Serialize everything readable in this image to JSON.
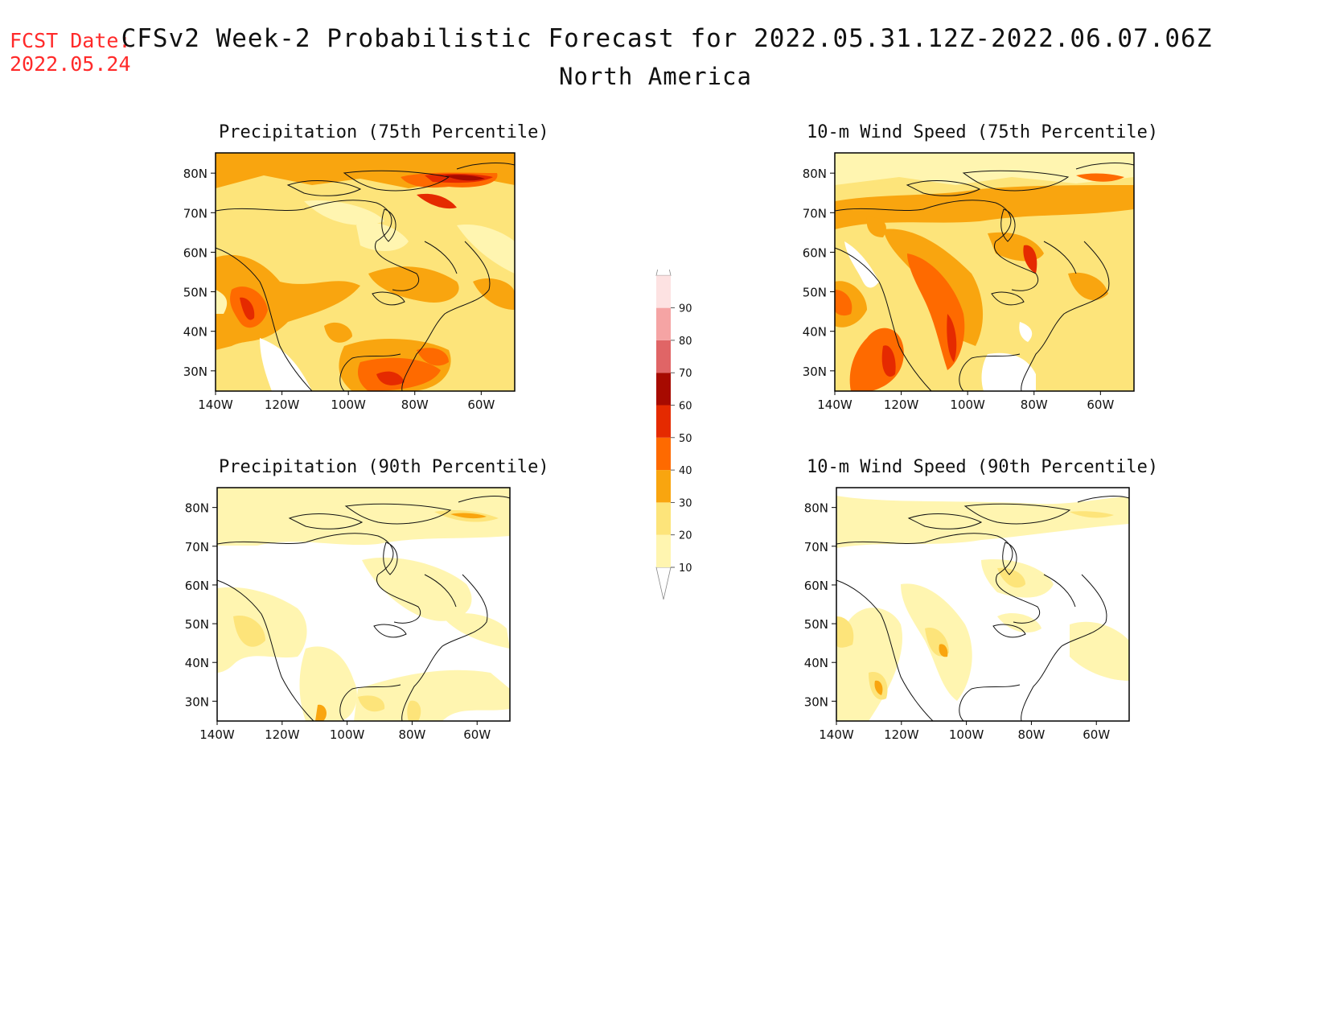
{
  "header": {
    "fcst_label": "FCST Date:",
    "fcst_date": "2022.05.24",
    "title": "CFSv2 Week-2 Probabilistic Forecast for 2022.05.31.12Z-2022.06.07.06Z",
    "subtitle": "North America"
  },
  "panels": [
    {
      "title": "Precipitation (75th Percentile)"
    },
    {
      "title": "10-m Wind Speed (75th Percentile)"
    },
    {
      "title": "Precipitation (90th Percentile)"
    },
    {
      "title": "10-m Wind Speed (90th Percentile)"
    }
  ],
  "axes": {
    "lat_labels": [
      "80N",
      "70N",
      "60N",
      "50N",
      "40N",
      "30N"
    ],
    "lon_labels": [
      "140W",
      "120W",
      "100W",
      "80W",
      "60W"
    ]
  },
  "colorbar": {
    "labels": [
      "90",
      "80",
      "70",
      "60",
      "50",
      "40",
      "30",
      "20",
      "10"
    ],
    "colors": {
      "c10": "#fff5b0",
      "c20": "#fde47a",
      "c30": "#f9a50f",
      "c40": "#fe6a00",
      "c50": "#e52a00",
      "c60": "#a70a00",
      "c70": "#e06566",
      "c80": "#f5a4a4",
      "c90": "#fde2e2"
    }
  }
}
